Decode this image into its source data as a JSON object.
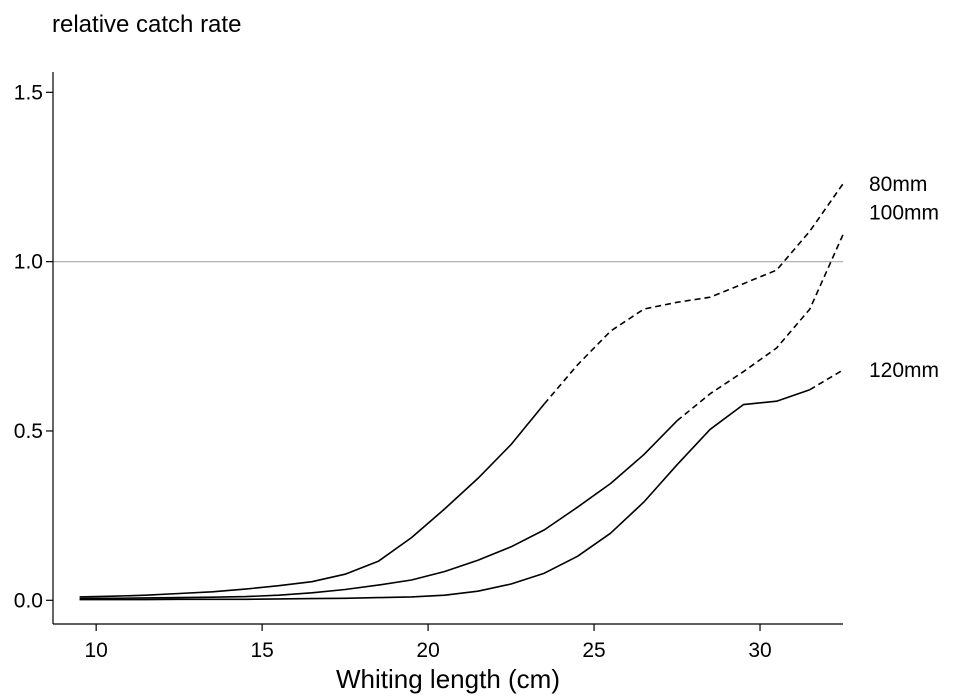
{
  "chart_data": {
    "type": "line",
    "title": "relative catch rate",
    "xlabel": "Whiting length (cm)",
    "ylabel": "",
    "xlim": [
      8.7,
      32.5
    ],
    "ylim": [
      -0.07,
      1.56
    ],
    "xticks": [
      10,
      15,
      20,
      25,
      30
    ],
    "yticks": [
      0.0,
      0.5,
      1.0,
      1.5
    ],
    "ytick_labels": [
      "0.0",
      "0.5",
      "1.0",
      "1.5"
    ],
    "reference_line": {
      "y": 1.0,
      "color": "#b3b3b3"
    },
    "grid": false,
    "legend": "none (series labelled at line ends)",
    "series": [
      {
        "name": "80mm",
        "solid_until_x": 23.5,
        "x": [
          9.5,
          10.5,
          11.5,
          12.5,
          13.5,
          14.5,
          15.5,
          16.5,
          17.5,
          18.5,
          19.5,
          20.5,
          21.5,
          22.5,
          23.5,
          24.5,
          25.5,
          26.5,
          27.5,
          28.5,
          29.5,
          30.5,
          31.5,
          32.5
        ],
        "y": [
          0.01,
          0.012,
          0.015,
          0.02,
          0.025,
          0.033,
          0.043,
          0.055,
          0.077,
          0.115,
          0.185,
          0.27,
          0.36,
          0.46,
          0.58,
          0.695,
          0.795,
          0.86,
          0.88,
          0.895,
          0.935,
          0.975,
          1.09,
          1.23
        ]
      },
      {
        "name": "100mm",
        "solid_until_x": 27.5,
        "x": [
          9.5,
          10.5,
          11.5,
          12.5,
          13.5,
          14.5,
          15.5,
          16.5,
          17.5,
          18.5,
          19.5,
          20.5,
          21.5,
          22.5,
          23.5,
          24.5,
          25.5,
          26.5,
          27.5,
          28.5,
          29.5,
          30.5,
          31.5,
          32.5
        ],
        "y": [
          0.005,
          0.006,
          0.007,
          0.008,
          0.009,
          0.011,
          0.015,
          0.022,
          0.032,
          0.045,
          0.06,
          0.085,
          0.118,
          0.158,
          0.208,
          0.275,
          0.345,
          0.43,
          0.53,
          0.61,
          0.675,
          0.745,
          0.86,
          1.08
        ]
      },
      {
        "name": "120mm",
        "solid_until_x": 31.5,
        "x": [
          9.5,
          10.5,
          11.5,
          12.5,
          13.5,
          14.5,
          15.5,
          16.5,
          17.5,
          18.5,
          19.5,
          20.5,
          21.5,
          22.5,
          23.5,
          24.5,
          25.5,
          26.5,
          27.5,
          28.5,
          29.5,
          30.5,
          31.5,
          32.5
        ],
        "y": [
          0.002,
          0.002,
          0.002,
          0.003,
          0.003,
          0.003,
          0.004,
          0.005,
          0.006,
          0.008,
          0.01,
          0.015,
          0.027,
          0.048,
          0.08,
          0.13,
          0.198,
          0.29,
          0.4,
          0.505,
          0.578,
          0.588,
          0.622,
          0.68
        ]
      }
    ]
  }
}
